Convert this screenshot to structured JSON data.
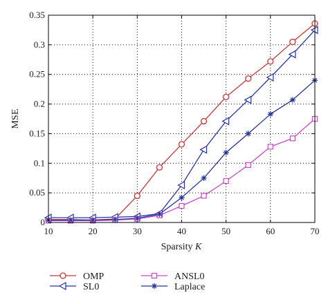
{
  "chart_data": {
    "type": "line",
    "xlabel_main": "Sparsity ",
    "xlabel_var": "K",
    "ylabel": "MSE",
    "xlim": [
      10,
      70
    ],
    "ylim": [
      0,
      0.35
    ],
    "x_ticks": [
      "10",
      "20",
      "30",
      "40",
      "50",
      "60",
      "70"
    ],
    "y_ticks": [
      "0",
      "0.05",
      "0.1",
      "0.15",
      "0.2",
      "0.25",
      "0.3",
      "0.35"
    ],
    "grid": true,
    "legend_position": "bottom",
    "x": [
      10,
      15,
      20,
      25,
      30,
      35,
      40,
      45,
      50,
      55,
      60,
      65,
      70
    ],
    "series": [
      {
        "name": "OMP",
        "color": "#cc3333",
        "marker": "circle",
        "values": [
          0.005,
          0.005,
          0.004,
          0.006,
          0.045,
          0.093,
          0.132,
          0.171,
          0.212,
          0.243,
          0.272,
          0.305,
          0.336
        ]
      },
      {
        "name": "SL0",
        "color": "#2233aa",
        "marker": "triangle-left",
        "values": [
          0.008,
          0.008,
          0.008,
          0.009,
          0.01,
          0.015,
          0.063,
          0.123,
          0.171,
          0.207,
          0.245,
          0.284,
          0.325
        ]
      },
      {
        "name": "ANSL0",
        "color": "#cc44cc",
        "marker": "square",
        "values": [
          0.003,
          0.003,
          0.003,
          0.004,
          0.006,
          0.012,
          0.028,
          0.045,
          0.07,
          0.097,
          0.128,
          0.142,
          0.175
        ]
      },
      {
        "name": "Laplace",
        "color": "#223399",
        "marker": "star",
        "values": [
          0.004,
          0.004,
          0.004,
          0.005,
          0.007,
          0.014,
          0.042,
          0.075,
          0.118,
          0.15,
          0.183,
          0.207,
          0.24
        ]
      }
    ]
  }
}
